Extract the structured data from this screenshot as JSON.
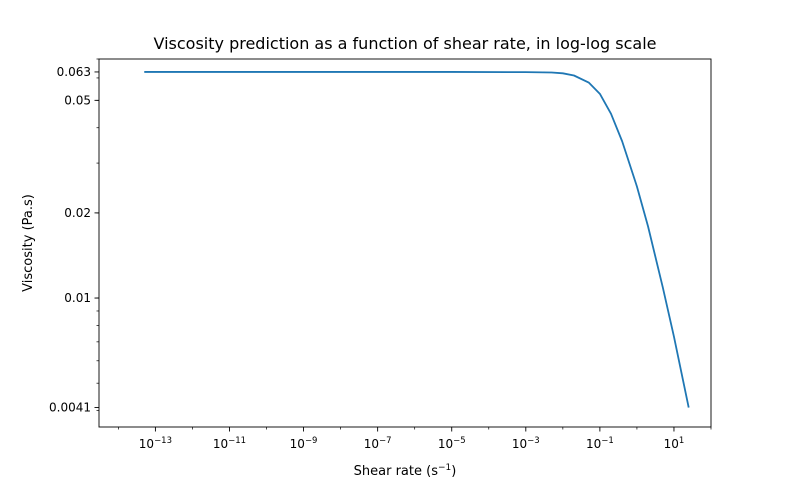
{
  "chart_data": {
    "type": "line",
    "title": "Viscosity prediction as a function of shear rate, in log-log scale",
    "xlabel": {
      "main": "Shear rate (s",
      "sup": "−1",
      "close": ")"
    },
    "ylabel": "Viscosity (Pa.s)",
    "xscale": "log",
    "yscale": "log",
    "xlim": [
      3e-15,
      100
    ],
    "ylim": [
      0.0035,
      0.07
    ],
    "grid": false,
    "line_color": "#1f77b4",
    "x_ticks": [
      {
        "value": 1e-13,
        "base": "10",
        "exp": "−13"
      },
      {
        "value": 1e-11,
        "base": "10",
        "exp": "−11"
      },
      {
        "value": 1e-09,
        "base": "10",
        "exp": "−9"
      },
      {
        "value": 1e-07,
        "base": "10",
        "exp": "−7"
      },
      {
        "value": 1e-05,
        "base": "10",
        "exp": "−5"
      },
      {
        "value": 0.001,
        "base": "10",
        "exp": "−3"
      },
      {
        "value": 0.1,
        "base": "10",
        "exp": "−1"
      },
      {
        "value": 10.0,
        "base": "10",
        "exp": "1"
      }
    ],
    "y_ticks": [
      {
        "value": 0.063,
        "label": "0.063"
      },
      {
        "value": 0.05,
        "label": "0.05"
      },
      {
        "value": 0.02,
        "label": "0.02"
      },
      {
        "value": 0.01,
        "label": "0.01"
      },
      {
        "value": 0.0041,
        "label": "0.0041"
      }
    ],
    "series": [
      {
        "x": [
          5e-14,
          1e-13,
          1e-11,
          1e-09,
          1e-07,
          1e-05,
          0.001,
          0.005,
          0.01,
          0.02,
          0.05,
          0.1,
          0.2,
          0.4,
          1,
          2,
          5,
          10,
          25
        ],
        "y": [
          0.063,
          0.063,
          0.063,
          0.063,
          0.063,
          0.063,
          0.0629,
          0.0627,
          0.0623,
          0.0612,
          0.0578,
          0.0527,
          0.0448,
          0.0358,
          0.0248,
          0.0179,
          0.0109,
          0.0073,
          0.0041
        ]
      }
    ]
  }
}
